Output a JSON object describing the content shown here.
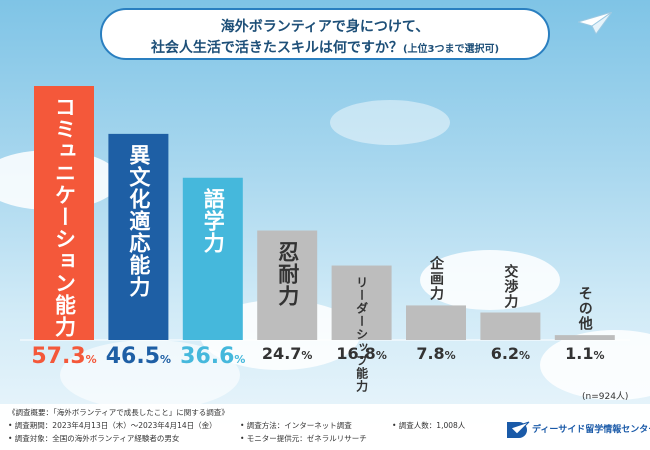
{
  "title": {
    "line1": "海外ボランティアで身につけて、",
    "line2": "社会人生活で活きたスキルは何ですか？",
    "line2_sub": "(上位3つまで選択可)"
  },
  "chart_data": {
    "type": "bar",
    "title": "海外ボランティアで身につけて、社会人生活で活きたスキルは何ですか？(上位3つまで選択可)",
    "categories": [
      "コミュニケーション能力",
      "異文化適応能力",
      "語学力",
      "忍耐力",
      "リーダーシップ能力",
      "企画力",
      "交渉力",
      "その他"
    ],
    "values": [
      57.3,
      46.5,
      36.6,
      24.7,
      16.8,
      7.8,
      6.2,
      1.1
    ],
    "value_labels": [
      {
        "main": "57.3",
        "unit": "%"
      },
      {
        "main": "46.5",
        "unit": "%"
      },
      {
        "main": "36.6",
        "unit": "%"
      },
      {
        "main": "24.7",
        "unit": "%"
      },
      {
        "main": "16.8",
        "unit": "%"
      },
      {
        "main": "7.8",
        "unit": "%"
      },
      {
        "main": "6.2",
        "unit": "%"
      },
      {
        "main": "1.1",
        "unit": "%"
      }
    ],
    "colors": [
      "#f4583a",
      "#1e5fa5",
      "#45b8dc",
      "#bdbdbd",
      "#bdbdbd",
      "#bdbdbd",
      "#bdbdbd",
      "#bdbdbd"
    ],
    "label_colors": [
      "#ffffff",
      "#ffffff",
      "#ffffff",
      "#333333",
      "#333333",
      "#333333",
      "#333333",
      "#333333"
    ],
    "ylim": [
      0,
      60
    ],
    "sample_note": "(n=924人)"
  },
  "footer": {
    "heading": "《調査概要：「海外ボランティアで成長したこと」に関する調査》",
    "period": "• 調査期間：2023年4月13日（木）〜2023年4月14日（金）",
    "target": "• 調査対象：全国の海外ボランティア経験者の男女",
    "method": "• 調査方法：インターネット調査",
    "provider": "• モニター提供元：ゼネラルリサーチ",
    "count": "• 調査人数：1,008人",
    "brand": "ディーサイド留学情報センター"
  }
}
